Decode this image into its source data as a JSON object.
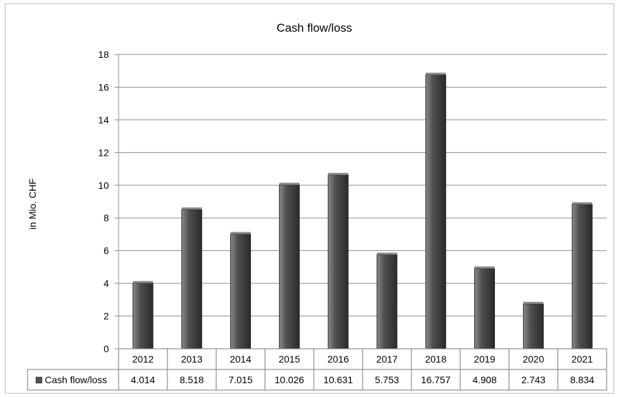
{
  "chart_data": {
    "type": "bar",
    "title": "Cash flow/loss",
    "ylabel": "in Mio. CHF",
    "xlabel": "",
    "categories": [
      "2012",
      "2013",
      "2014",
      "2015",
      "2016",
      "2017",
      "2018",
      "2019",
      "2020",
      "2021"
    ],
    "series": [
      {
        "name": "Cash flow/loss",
        "values": [
          4.014,
          8.518,
          7.015,
          10.026,
          10.631,
          5.753,
          16.757,
          4.908,
          2.743,
          8.834
        ],
        "value_labels": [
          "4.014",
          "8.518",
          "7.015",
          "10.026",
          "10.631",
          "5.753",
          "16.757",
          "4.908",
          "2.743",
          "8.834"
        ]
      }
    ],
    "ylim": [
      0,
      18
    ],
    "yticks": [
      0,
      2,
      4,
      6,
      8,
      10,
      12,
      14,
      16,
      18
    ],
    "grid": true,
    "legend": "data-table",
    "colors": {
      "bar": "#505050",
      "bar_light": "#8a8a8a",
      "bar_dark": "#2a2a2a",
      "grid": "#8c8c8c"
    }
  }
}
